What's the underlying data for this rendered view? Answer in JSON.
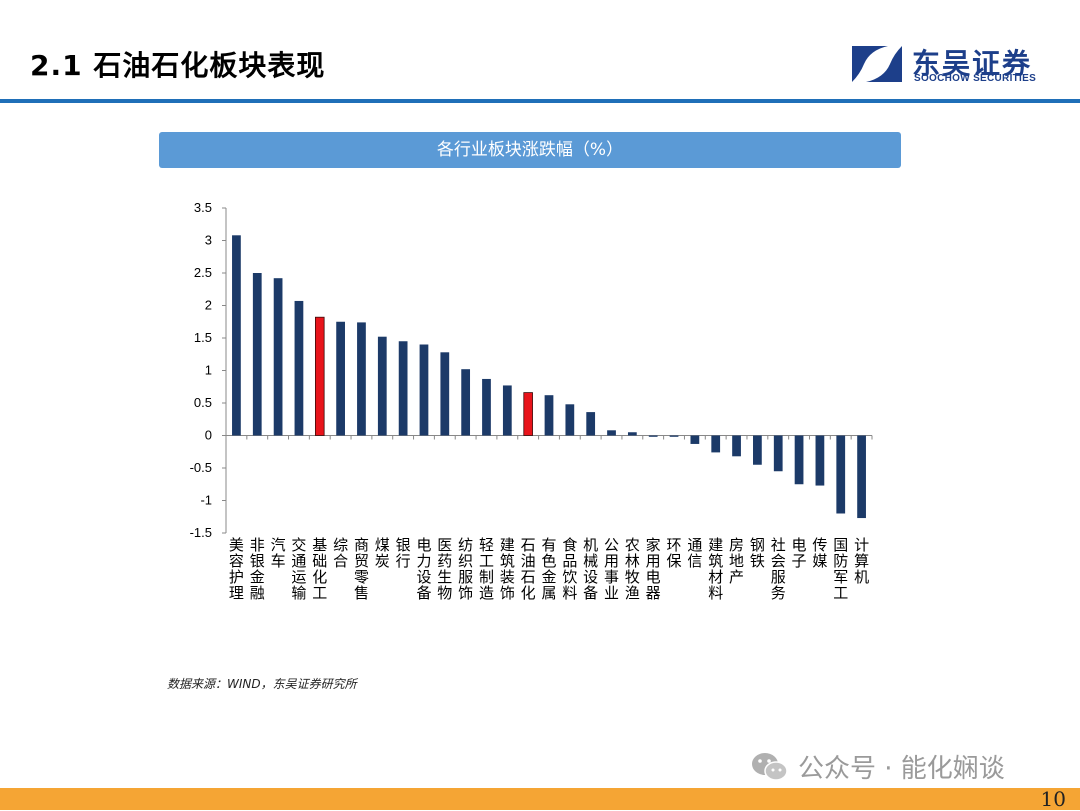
{
  "slide": {
    "title": "2.1 石油石化板块表现",
    "page_number": "10",
    "source": "数据来源：WIND，东吴证券研究所",
    "watermark": "公众号 · 能化娴谈"
  },
  "logo": {
    "name_cn": "东吴证券",
    "name_en": "SOOCHOW SECURITIES"
  },
  "colors": {
    "brand_blue": "#1d3f8a",
    "header_rule": "#1f6fb8",
    "banner": "#5b9ad6",
    "bar_default": "#1c3a68",
    "bar_highlight": "#e8141b",
    "footer": "#f5a534"
  },
  "chart_data": {
    "type": "bar",
    "title": "各行业板块涨跌幅（%）",
    "xlabel": "",
    "ylabel": "",
    "ylim": [
      -1.5,
      3.5
    ],
    "yticks": [
      "3.5",
      "3",
      "2.5",
      "2",
      "1.5",
      "1",
      "0.5",
      "0",
      "-0.5",
      "-1",
      "-1.5"
    ],
    "grid": false,
    "categories": [
      "美容护理",
      "非银金融",
      "汽车",
      "交通运输",
      "基础化工",
      "综合",
      "商贸零售",
      "煤炭",
      "银行",
      "电力设备",
      "医药生物",
      "纺织服饰",
      "轻工制造",
      "建筑装饰",
      "石油石化",
      "有色金属",
      "食品饮料",
      "机械设备",
      "公用事业",
      "农林牧渔",
      "家用电器",
      "环保",
      "通信",
      "建筑材料",
      "房地产",
      "钢铁",
      "社会服务",
      "电子",
      "传媒",
      "国防军工",
      "计算机"
    ],
    "values": [
      3.08,
      2.5,
      2.42,
      2.07,
      1.82,
      1.75,
      1.74,
      1.52,
      1.45,
      1.4,
      1.28,
      1.02,
      0.87,
      0.77,
      0.66,
      0.62,
      0.48,
      0.36,
      0.08,
      0.05,
      -0.02,
      -0.02,
      -0.13,
      -0.26,
      -0.32,
      -0.45,
      -0.55,
      -0.75,
      -0.77,
      -1.2,
      -1.27
    ],
    "highlight": [
      "基础化工",
      "石油石化"
    ]
  }
}
